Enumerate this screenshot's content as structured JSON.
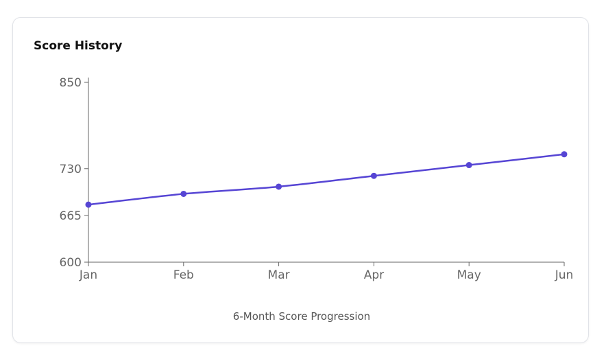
{
  "card": {
    "title": "Score History"
  },
  "chart_data": {
    "type": "line",
    "title": "Score History",
    "xlabel": "6-Month Score Progression",
    "ylabel": "",
    "categories": [
      "Jan",
      "Feb",
      "Mar",
      "Apr",
      "May",
      "Jun"
    ],
    "series": [
      {
        "color": "#5645d4",
        "values": [
          680,
          695,
          705,
          720,
          735,
          750
        ]
      }
    ],
    "ylim": [
      600,
      850
    ],
    "yticks": [
      600,
      665,
      730,
      850
    ],
    "grid": false,
    "legend": "none"
  }
}
